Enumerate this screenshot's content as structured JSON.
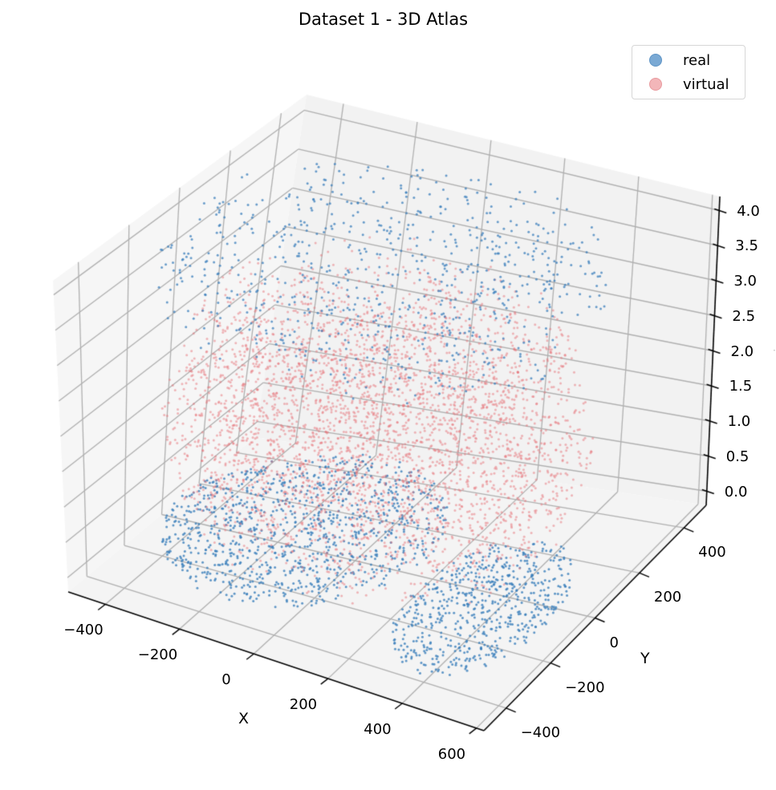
{
  "chart_data": {
    "type": "scatter",
    "projection": "3d",
    "title": "Dataset 1 - 3D Atlas",
    "xlabel": "X",
    "ylabel": "Y",
    "zlabel": "",
    "xlim": [
      -500,
      620
    ],
    "ylim": [
      -500,
      500
    ],
    "zlim": [
      -0.2,
      4.2
    ],
    "xticks": [
      "−400",
      "−200",
      "0",
      "200",
      "400",
      "600"
    ],
    "yticks": [
      "−400",
      "−200",
      "0",
      "200",
      "400"
    ],
    "zticks": [
      "0.0",
      "0.5",
      "1.0",
      "1.5",
      "2.0",
      "2.5",
      "3.0",
      "3.5",
      "4.0"
    ],
    "grid": true,
    "legend_position": "upper right",
    "series": [
      {
        "name": "real",
        "color": "#3b7fbc",
        "alpha": 0.7,
        "description": "Blue points: dense bottom layer (z≈0) forming two lobes (x −400..200 and x 300..550), plus a sparse top layer (z≈3.5–4.0) spanning x −450..550",
        "clusters": [
          {
            "x_range": [
              -450,
              200
            ],
            "y_range": [
              -350,
              350
            ],
            "z": 0.0,
            "count": 1200
          },
          {
            "x_range": [
              250,
              560
            ],
            "y_range": [
              -400,
              150
            ],
            "z": 0.0,
            "count": 650
          },
          {
            "x_range": [
              -450,
              550
            ],
            "y_range": [
              -400,
              400
            ],
            "z_range": [
              3.3,
              4.1
            ],
            "count": 900
          }
        ]
      },
      {
        "name": "virtual",
        "color": "#e8747a",
        "alpha": 0.5,
        "description": "Red points: volumetric cloud filling z≈0.3–3.2 between the real layers",
        "clusters": [
          {
            "x_range": [
              -450,
              550
            ],
            "y_range": [
              -400,
              400
            ],
            "z_range": [
              0.3,
              3.2
            ],
            "count": 4200
          }
        ]
      }
    ]
  },
  "legend": {
    "items": [
      {
        "label": "real",
        "color": "#3b7fbc",
        "edge": "#5f95c6",
        "fill": "#7aa9d4"
      },
      {
        "label": "virtual",
        "color": "#e8747a",
        "edge": "#e89a9e",
        "fill": "#f3b6b9"
      }
    ]
  },
  "axes": {
    "pane_color": "#f2f2f2",
    "pane_color_left": "#f6f6f6",
    "pane_color_bottom": "#f4f4f4",
    "grid_color": "#b0b0b0",
    "axis_color": "#000000"
  }
}
